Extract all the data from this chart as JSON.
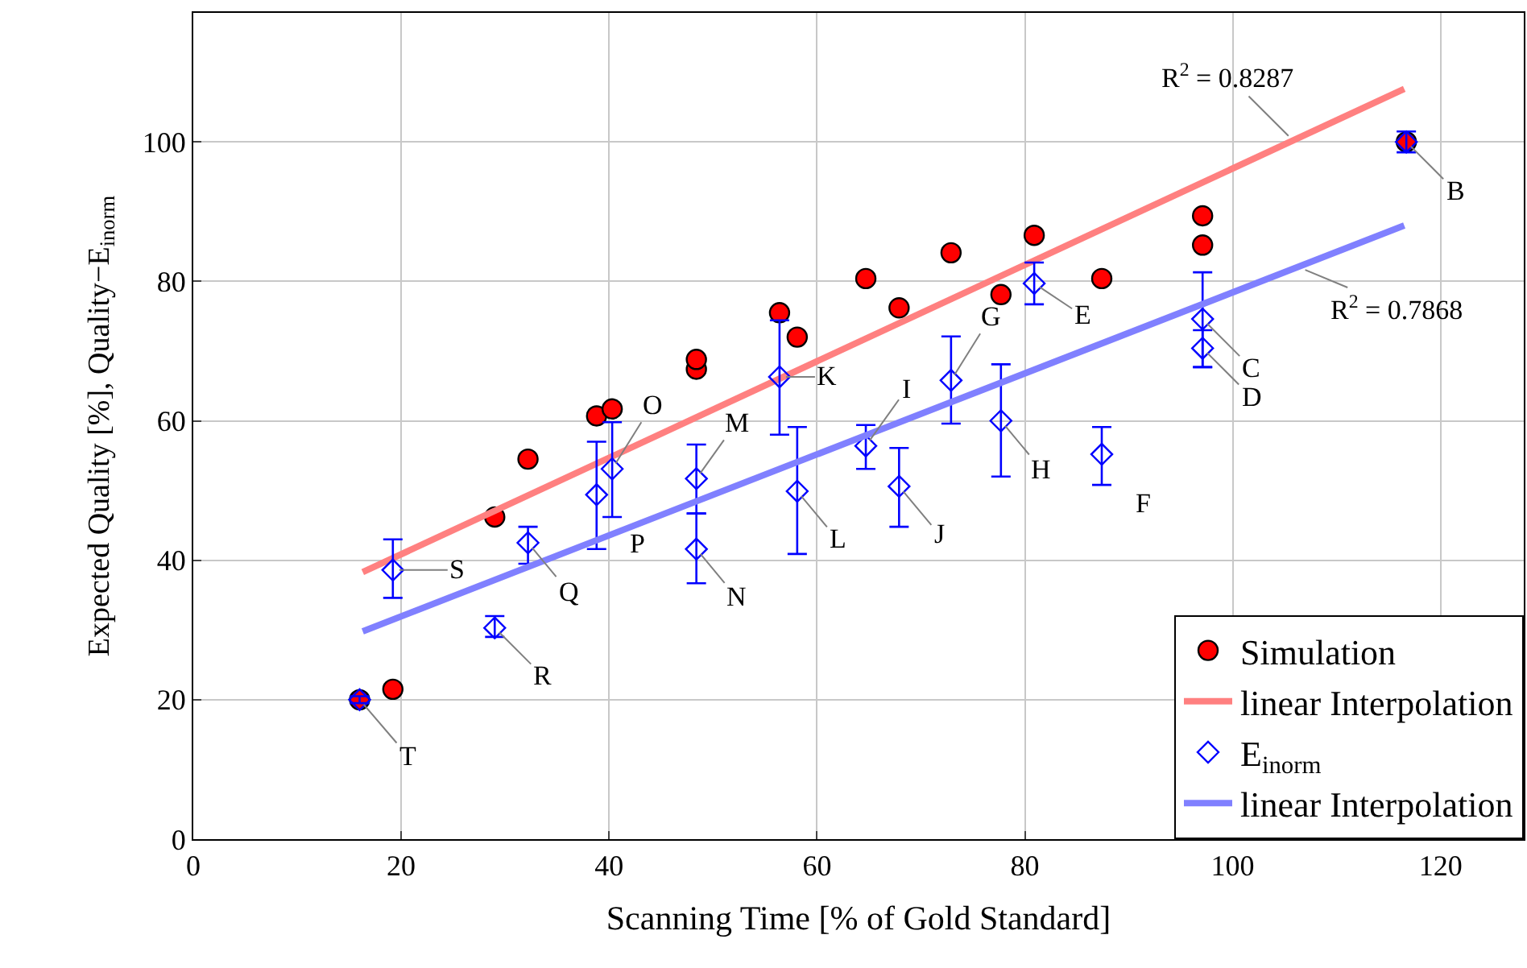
{
  "chart_data": {
    "type": "scatter",
    "xlabel": "Scanning Time [% of Gold Standard]",
    "ylabel": "Expected Quality [%], Quality−E$_{inorm}$",
    "xlim": [
      0,
      128
    ],
    "ylim": [
      0,
      118.5
    ],
    "xticks": [
      0,
      20,
      40,
      60,
      80,
      100,
      120
    ],
    "yticks": [
      0,
      20,
      40,
      60,
      80,
      100
    ],
    "grid": true,
    "legend": "bottom right",
    "series": [
      {
        "name": "Simulation",
        "marker": "circle",
        "color": "#ff0000",
        "x": [
          16.0,
          19.2,
          29.0,
          32.2,
          38.8,
          40.3,
          48.4,
          48.4,
          56.4,
          58.1,
          64.7,
          67.9,
          72.9,
          77.7,
          80.9,
          87.4,
          97.1,
          97.1,
          116.7
        ],
        "values": [
          20,
          21.5,
          46.2,
          54.5,
          60.7,
          61.7,
          67.4,
          68.8,
          75.5,
          72.0,
          80.4,
          76.2,
          84.1,
          78.1,
          86.6,
          80.4,
          89.4,
          85.2,
          100
        ]
      },
      {
        "name": "linear Interpolation",
        "type": "line",
        "color": "#ff8080",
        "x": [
          16.3,
          116.5
        ],
        "values": [
          38.3,
          107.6
        ]
      },
      {
        "name": "E$_{inorm}$",
        "marker": "diamond",
        "color": "#0000ff",
        "x": [
          16.0,
          19.2,
          29.0,
          32.2,
          38.8,
          40.3,
          48.4,
          48.4,
          56.4,
          58.1,
          64.7,
          67.9,
          72.9,
          77.7,
          80.9,
          87.4,
          97.1,
          97.1,
          116.7
        ],
        "values": [
          20,
          38.6,
          30.3,
          42.5,
          49.4,
          53.1,
          51.7,
          41.6,
          66.3,
          49.9,
          56.4,
          50.6,
          65.8,
          60.0,
          79.7,
          55.2,
          74.6,
          70.4,
          100
        ],
        "errors": [
          [
            19.5,
            20.5
          ],
          [
            34.6,
            43.0
          ],
          [
            29.0,
            32.0
          ],
          [
            39.5,
            44.8
          ],
          [
            41.6,
            57.0
          ],
          [
            46.2,
            59.8
          ],
          [
            46.7,
            56.6
          ],
          [
            36.7,
            46.7
          ],
          [
            58.0,
            74.4
          ],
          [
            40.9,
            59.1
          ],
          [
            53.1,
            59.4
          ],
          [
            44.8,
            56.1
          ],
          [
            59.6,
            72.1
          ],
          [
            52.0,
            68.1
          ],
          [
            76.7,
            82.7
          ],
          [
            50.8,
            59.1
          ],
          [
            67.7,
            81.3
          ],
          [
            67.7,
            73.0
          ],
          [
            98.5,
            101.5
          ]
        ]
      },
      {
        "name": "linear Interpolation",
        "type": "line",
        "color": "#8080ff",
        "x": [
          16.3,
          116.5
        ],
        "values": [
          29.8,
          88.0
        ]
      }
    ],
    "annotations": [
      {
        "text": "T",
        "x": 16.0,
        "y": 20
      },
      {
        "text": "S",
        "x": 19.2,
        "y": 38.6
      },
      {
        "text": "R",
        "x": 29.0,
        "y": 30.3
      },
      {
        "text": "Q",
        "x": 32.2,
        "y": 42.5
      },
      {
        "text": "P",
        "x": 38.8,
        "y": 49.4
      },
      {
        "text": "O",
        "x": 40.3,
        "y": 53.1
      },
      {
        "text": "M",
        "x": 48.4,
        "y": 51.7
      },
      {
        "text": "N",
        "x": 48.4,
        "y": 41.6
      },
      {
        "text": "K",
        "x": 56.4,
        "y": 66.3
      },
      {
        "text": "L",
        "x": 58.1,
        "y": 49.9
      },
      {
        "text": "I",
        "x": 64.7,
        "y": 56.4
      },
      {
        "text": "J",
        "x": 67.9,
        "y": 50.6
      },
      {
        "text": "G",
        "x": 72.9,
        "y": 65.8
      },
      {
        "text": "H",
        "x": 77.7,
        "y": 60.0
      },
      {
        "text": "E",
        "x": 80.9,
        "y": 79.7
      },
      {
        "text": "F",
        "x": 87.4,
        "y": 55.2
      },
      {
        "text": "C",
        "x": 97.1,
        "y": 74.6
      },
      {
        "text": "D",
        "x": 97.1,
        "y": 70.4
      },
      {
        "text": "B",
        "x": 116.7,
        "y": 100
      },
      {
        "text": "R$^{2}$ = 0.8287",
        "x": 105.8,
        "y": 100.2
      },
      {
        "text": "R$^{2}$ = 0.7868",
        "x": 106.4,
        "y": 82.0
      }
    ]
  }
}
